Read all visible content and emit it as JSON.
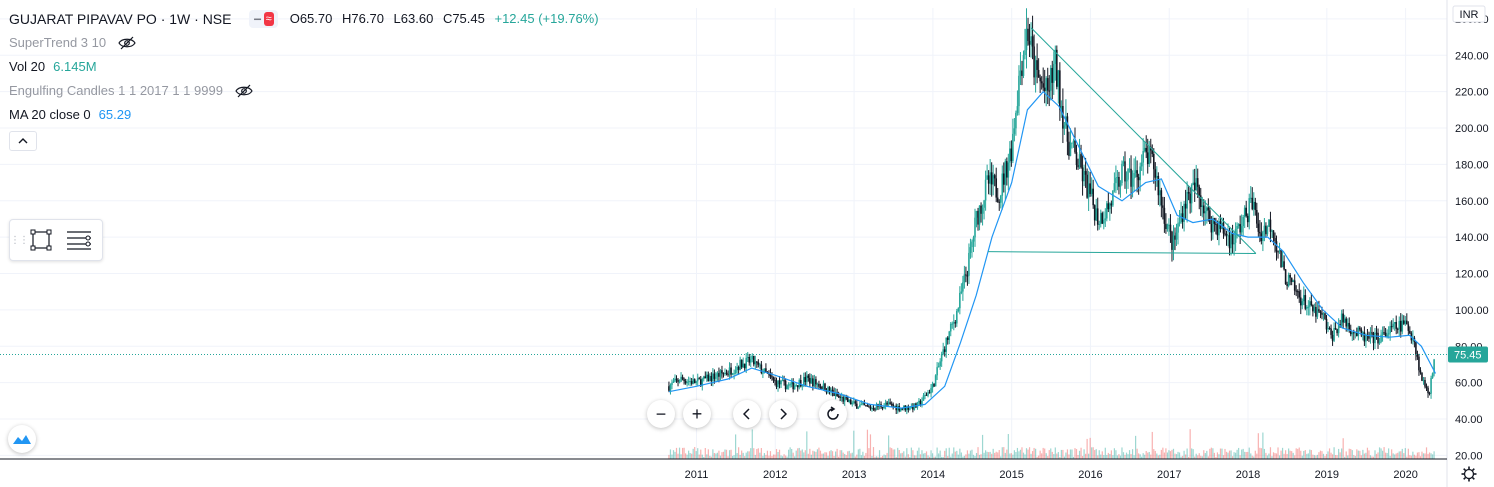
{
  "header": {
    "symbol": "GUJARAT PIPAVAV PO · 1W · NSE",
    "open": "O65.70",
    "high": "H76.70",
    "low": "L63.60",
    "close": "C75.45",
    "change": "+12.45 (+19.76%)"
  },
  "indicators": {
    "supertrend": "SuperTrend 3 10",
    "volume_label": "Vol 20",
    "volume_value": "6.145M",
    "engulfing": "Engulfing Candles 1 1 2017 1 1 9999",
    "ma_label": "MA 20 close 0",
    "ma_value": "65.29"
  },
  "icons": {
    "eye_hidden": "eye-off-icon",
    "collapse": "chevron-up-icon",
    "rectangle_tool": "rectangle-icon",
    "lines_tool": "lines-icon",
    "zoom_out": "minus-icon",
    "zoom_in": "plus-icon",
    "scroll_left": "chevron-left-icon",
    "scroll_right": "chevron-right-icon",
    "reset": "reset-icon",
    "settings": "gear-icon",
    "logo": "tradingview-logo-icon"
  },
  "colors": {
    "up": "#26a69a",
    "down": "#131722",
    "ma": "#2196f3",
    "trendline": "#26a69a",
    "price_badge": "#26a69a",
    "grid": "#f0f3fa"
  },
  "chart_data": {
    "type": "line",
    "currency": "INR",
    "last_price": "75.45",
    "y_ticks": [
      20,
      40,
      60,
      80,
      100,
      120,
      140,
      160,
      180,
      200,
      220,
      240,
      260
    ],
    "ylim": [
      18,
      266
    ],
    "x_ticks": [
      "2011",
      "2012",
      "2013",
      "2014",
      "2015",
      "2016",
      "2017",
      "2018",
      "2019",
      "2020"
    ],
    "xlim": [
      2010.6,
      2020.5
    ],
    "price_close": [
      [
        2010.65,
        58
      ],
      [
        2010.8,
        62
      ],
      [
        2011.0,
        60
      ],
      [
        2011.2,
        63
      ],
      [
        2011.4,
        66
      ],
      [
        2011.55,
        70
      ],
      [
        2011.7,
        72
      ],
      [
        2011.85,
        66
      ],
      [
        2012.0,
        60
      ],
      [
        2012.2,
        58
      ],
      [
        2012.4,
        62
      ],
      [
        2012.6,
        58
      ],
      [
        2012.8,
        52
      ],
      [
        2013.0,
        48
      ],
      [
        2013.2,
        46
      ],
      [
        2013.4,
        48
      ],
      [
        2013.6,
        46
      ],
      [
        2013.8,
        47
      ],
      [
        2014.0,
        58
      ],
      [
        2014.15,
        80
      ],
      [
        2014.3,
        98
      ],
      [
        2014.45,
        125
      ],
      [
        2014.55,
        150
      ],
      [
        2014.7,
        170
      ],
      [
        2014.85,
        165
      ],
      [
        2015.0,
        190
      ],
      [
        2015.1,
        230
      ],
      [
        2015.2,
        255
      ],
      [
        2015.3,
        230
      ],
      [
        2015.45,
        218
      ],
      [
        2015.55,
        235
      ],
      [
        2015.7,
        195
      ],
      [
        2015.85,
        180
      ],
      [
        2016.0,
        162
      ],
      [
        2016.1,
        150
      ],
      [
        2016.25,
        158
      ],
      [
        2016.4,
        175
      ],
      [
        2016.55,
        172
      ],
      [
        2016.7,
        185
      ],
      [
        2016.8,
        180
      ],
      [
        2016.95,
        150
      ],
      [
        2017.05,
        135
      ],
      [
        2017.2,
        160
      ],
      [
        2017.35,
        168
      ],
      [
        2017.5,
        150
      ],
      [
        2017.65,
        145
      ],
      [
        2017.8,
        138
      ],
      [
        2017.95,
        150
      ],
      [
        2018.05,
        160
      ],
      [
        2018.15,
        142
      ],
      [
        2018.3,
        148
      ],
      [
        2018.45,
        120
      ],
      [
        2018.6,
        110
      ],
      [
        2018.8,
        100
      ],
      [
        2018.95,
        96
      ],
      [
        2019.05,
        85
      ],
      [
        2019.2,
        95
      ],
      [
        2019.35,
        88
      ],
      [
        2019.5,
        84
      ],
      [
        2019.7,
        85
      ],
      [
        2019.85,
        90
      ],
      [
        2020.0,
        92
      ],
      [
        2020.1,
        85
      ],
      [
        2020.2,
        62
      ],
      [
        2020.3,
        55
      ],
      [
        2020.38,
        75
      ]
    ],
    "ma_20": [
      [
        2010.65,
        55
      ],
      [
        2011.0,
        58
      ],
      [
        2011.4,
        62
      ],
      [
        2011.7,
        68
      ],
      [
        2012.0,
        64
      ],
      [
        2012.4,
        58
      ],
      [
        2012.8,
        54
      ],
      [
        2013.2,
        48
      ],
      [
        2013.6,
        46
      ],
      [
        2013.9,
        48
      ],
      [
        2014.15,
        58
      ],
      [
        2014.35,
        82
      ],
      [
        2014.55,
        108
      ],
      [
        2014.75,
        140
      ],
      [
        2015.0,
        170
      ],
      [
        2015.2,
        210
      ],
      [
        2015.4,
        220
      ],
      [
        2015.6,
        212
      ],
      [
        2015.85,
        190
      ],
      [
        2016.1,
        168
      ],
      [
        2016.4,
        160
      ],
      [
        2016.7,
        170
      ],
      [
        2016.9,
        172
      ],
      [
        2017.1,
        152
      ],
      [
        2017.3,
        148
      ],
      [
        2017.55,
        150
      ],
      [
        2017.8,
        142
      ],
      [
        2018.0,
        140
      ],
      [
        2018.25,
        140
      ],
      [
        2018.45,
        132
      ],
      [
        2018.7,
        115
      ],
      [
        2018.95,
        100
      ],
      [
        2019.2,
        90
      ],
      [
        2019.5,
        86
      ],
      [
        2019.8,
        85
      ],
      [
        2020.05,
        86
      ],
      [
        2020.2,
        80
      ],
      [
        2020.38,
        65
      ]
    ],
    "trendlines": [
      {
        "from": [
          2015.25,
          255
        ],
        "to": [
          2018.1,
          131
        ]
      },
      {
        "from": [
          2014.7,
          132
        ],
        "to": [
          2018.1,
          131
        ]
      }
    ]
  }
}
